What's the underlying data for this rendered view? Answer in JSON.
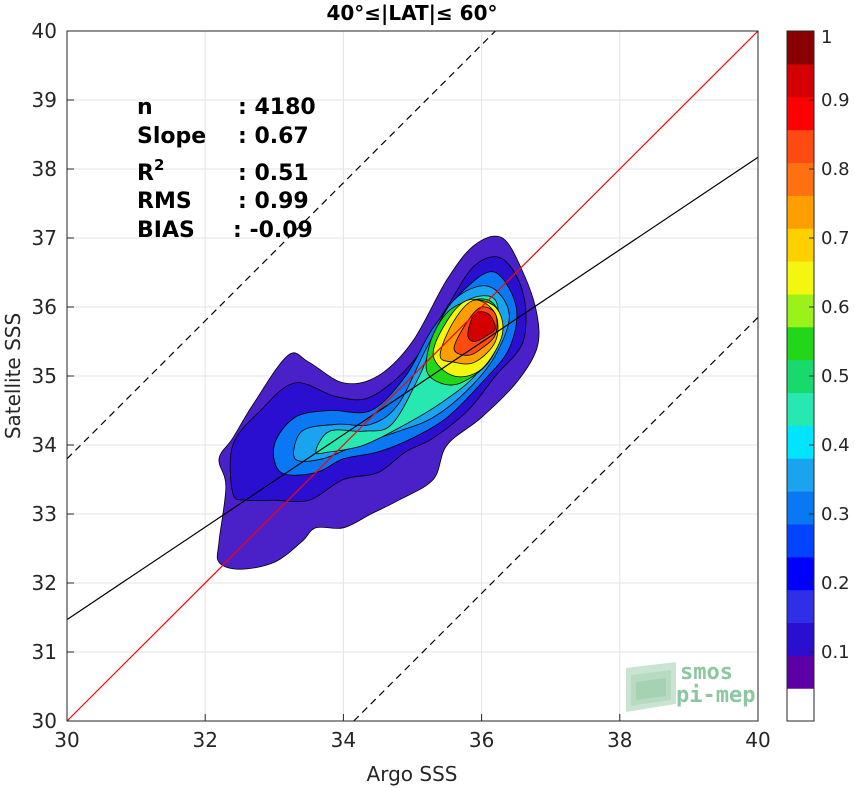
{
  "chart_data": {
    "type": "contour",
    "title": "40°≤|LAT|≤ 60°",
    "xlabel": "Argo SSS",
    "ylabel": "Satellite SSS",
    "xlim": [
      30,
      40
    ],
    "ylim": [
      30,
      40
    ],
    "xticks": [
      "30",
      "32",
      "34",
      "36",
      "38",
      "40"
    ],
    "yticks": [
      "30",
      "31",
      "32",
      "33",
      "34",
      "35",
      "36",
      "37",
      "38",
      "39",
      "40"
    ],
    "grid": true,
    "stats": [
      {
        "label": "n",
        "value": ": 4180"
      },
      {
        "label": "Slope",
        "value": ": 0.67"
      },
      {
        "label": "R2",
        "value": ": 0.51"
      },
      {
        "label": "RMS",
        "value": ": 0.99"
      },
      {
        "label": "BIAS",
        "value": ": -0.09"
      }
    ],
    "reference_lines": {
      "one_to_one": {
        "slope": 1,
        "intercept": 0,
        "color": "#ff0000"
      },
      "regression": {
        "slope": 0.67,
        "intercept": 11.37,
        "color": "#000000"
      },
      "plus_offset": {
        "slope": 1,
        "intercept": 3.8,
        "color": "#000000",
        "style": "dashed"
      },
      "minus_offset": {
        "slope": 1,
        "intercept": -4.15,
        "color": "#000000",
        "style": "dashed"
      }
    },
    "colorbar": {
      "range": [
        0,
        1
      ],
      "tick_labels": [
        "0.1",
        "0.2",
        "0.3",
        "0.4",
        "0.5",
        "0.6",
        "0.7",
        "0.8",
        "0.9",
        "1"
      ],
      "tick_values": [
        0.1,
        0.2,
        0.3,
        0.4,
        0.5,
        0.6,
        0.7,
        0.8,
        0.9,
        1.0
      ],
      "colors": [
        "#ffffff",
        "#5d00a6",
        "#2b0fd0",
        "#2e2fe6",
        "#0000ff",
        "#0044ff",
        "#0a78f2",
        "#1aa3ee",
        "#00e5ff",
        "#27e8b0",
        "#18d96b",
        "#22d61a",
        "#9af21a",
        "#f3f70f",
        "#ffd000",
        "#ff9e00",
        "#ff7010",
        "#ff4a12",
        "#ff0000",
        "#d40000",
        "#8a0000"
      ]
    },
    "contours": [
      {
        "level": 0.05,
        "color": "#4a20c8",
        "points": [
          [
            32.2,
            32.3
          ],
          [
            32.2,
            32.6
          ],
          [
            32.3,
            33.4
          ],
          [
            32.2,
            33.8
          ],
          [
            32.4,
            34.1
          ],
          [
            32.7,
            34.6
          ],
          [
            33.2,
            35.3
          ],
          [
            33.5,
            35.2
          ],
          [
            34.0,
            34.9
          ],
          [
            34.5,
            35.0
          ],
          [
            35.0,
            35.5
          ],
          [
            35.5,
            36.4
          ],
          [
            35.9,
            36.9
          ],
          [
            36.3,
            37.0
          ],
          [
            36.6,
            36.5
          ],
          [
            36.8,
            35.9
          ],
          [
            36.8,
            35.4
          ],
          [
            36.5,
            34.9
          ],
          [
            36.0,
            34.4
          ],
          [
            35.5,
            34.0
          ],
          [
            35.3,
            33.5
          ],
          [
            34.8,
            33.2
          ],
          [
            34.4,
            33.0
          ],
          [
            34.0,
            32.8
          ],
          [
            33.6,
            32.8
          ],
          [
            33.4,
            32.6
          ],
          [
            33.0,
            32.3
          ],
          [
            32.5,
            32.2
          ]
        ]
      },
      {
        "level": 0.15,
        "color": "#2b0fd0",
        "points": [
          [
            32.4,
            33.3
          ],
          [
            32.4,
            34.0
          ],
          [
            32.8,
            34.5
          ],
          [
            33.3,
            34.9
          ],
          [
            33.9,
            34.7
          ],
          [
            34.4,
            34.7
          ],
          [
            35.0,
            35.2
          ],
          [
            35.5,
            36.0
          ],
          [
            35.9,
            36.6
          ],
          [
            36.3,
            36.7
          ],
          [
            36.6,
            36.2
          ],
          [
            36.6,
            35.5
          ],
          [
            36.2,
            35.0
          ],
          [
            35.8,
            34.5
          ],
          [
            35.3,
            34.1
          ],
          [
            34.9,
            33.9
          ],
          [
            34.5,
            33.6
          ],
          [
            34.0,
            33.5
          ],
          [
            33.5,
            33.2
          ],
          [
            33.0,
            33.2
          ],
          [
            32.6,
            33.2
          ]
        ]
      },
      {
        "level": 0.25,
        "color": "#0a78f2",
        "points": [
          [
            33.1,
            33.6
          ],
          [
            33.0,
            34.0
          ],
          [
            33.3,
            34.4
          ],
          [
            33.8,
            34.5
          ],
          [
            34.4,
            34.5
          ],
          [
            34.9,
            35.0
          ],
          [
            35.3,
            35.7
          ],
          [
            35.8,
            36.3
          ],
          [
            36.2,
            36.5
          ],
          [
            36.5,
            36.0
          ],
          [
            36.4,
            35.4
          ],
          [
            36.0,
            34.9
          ],
          [
            35.5,
            34.4
          ],
          [
            35.0,
            34.1
          ],
          [
            34.5,
            33.9
          ],
          [
            34.0,
            33.8
          ],
          [
            33.6,
            33.6
          ]
        ]
      },
      {
        "level": 0.35,
        "color": "#1aa3ee",
        "points": [
          [
            33.3,
            33.8
          ],
          [
            33.4,
            34.2
          ],
          [
            33.9,
            34.3
          ],
          [
            34.4,
            34.3
          ],
          [
            34.8,
            34.6
          ],
          [
            35.2,
            35.4
          ],
          [
            35.6,
            36.1
          ],
          [
            36.1,
            36.3
          ],
          [
            36.4,
            35.9
          ],
          [
            36.2,
            35.3
          ],
          [
            35.8,
            34.8
          ],
          [
            35.3,
            34.4
          ],
          [
            34.8,
            34.2
          ],
          [
            34.2,
            34.0
          ],
          [
            33.7,
            33.8
          ]
        ]
      },
      {
        "level": 0.45,
        "color": "#27e8b0",
        "points": [
          [
            33.6,
            33.9
          ],
          [
            33.8,
            34.2
          ],
          [
            34.3,
            34.2
          ],
          [
            34.7,
            34.3
          ],
          [
            35.1,
            35.0
          ],
          [
            35.4,
            35.7
          ],
          [
            35.8,
            36.1
          ],
          [
            36.2,
            36.1
          ],
          [
            36.2,
            35.5
          ],
          [
            35.9,
            35.0
          ],
          [
            35.4,
            34.6
          ],
          [
            34.9,
            34.3
          ],
          [
            34.3,
            34.0
          ],
          [
            33.8,
            33.9
          ]
        ]
      },
      {
        "level": 0.55,
        "color": "#22d61a",
        "points": [
          [
            35.2,
            35.1
          ],
          [
            35.3,
            35.6
          ],
          [
            35.6,
            36.0
          ],
          [
            36.1,
            36.1
          ],
          [
            36.3,
            35.7
          ],
          [
            36.1,
            35.2
          ],
          [
            35.7,
            34.9
          ],
          [
            35.4,
            34.9
          ]
        ]
      },
      {
        "level": 0.65,
        "color": "#f3f70f",
        "points": [
          [
            35.3,
            35.3
          ],
          [
            35.5,
            35.8
          ],
          [
            35.8,
            36.1
          ],
          [
            36.2,
            36.0
          ],
          [
            36.3,
            35.6
          ],
          [
            36.0,
            35.1
          ],
          [
            35.6,
            35.0
          ]
        ]
      },
      {
        "level": 0.75,
        "color": "#ff9e00",
        "points": [
          [
            35.4,
            35.3
          ],
          [
            35.6,
            35.8
          ],
          [
            35.9,
            36.1
          ],
          [
            36.2,
            35.9
          ],
          [
            36.2,
            35.5
          ],
          [
            35.9,
            35.2
          ],
          [
            35.6,
            35.2
          ]
        ]
      },
      {
        "level": 0.85,
        "color": "#ff4a12",
        "points": [
          [
            35.6,
            35.4
          ],
          [
            35.8,
            35.8
          ],
          [
            36.0,
            36.0
          ],
          [
            36.2,
            35.9
          ],
          [
            36.2,
            35.6
          ],
          [
            36.0,
            35.4
          ],
          [
            35.8,
            35.3
          ]
        ]
      },
      {
        "level": 0.92,
        "color": "#d40000",
        "points": [
          [
            35.8,
            35.6
          ],
          [
            35.9,
            35.9
          ],
          [
            36.1,
            35.9
          ],
          [
            36.2,
            35.7
          ],
          [
            36.1,
            35.6
          ],
          [
            35.9,
            35.5
          ]
        ]
      }
    ],
    "logo": {
      "line1": "smos",
      "line2": "pi-mep"
    }
  }
}
